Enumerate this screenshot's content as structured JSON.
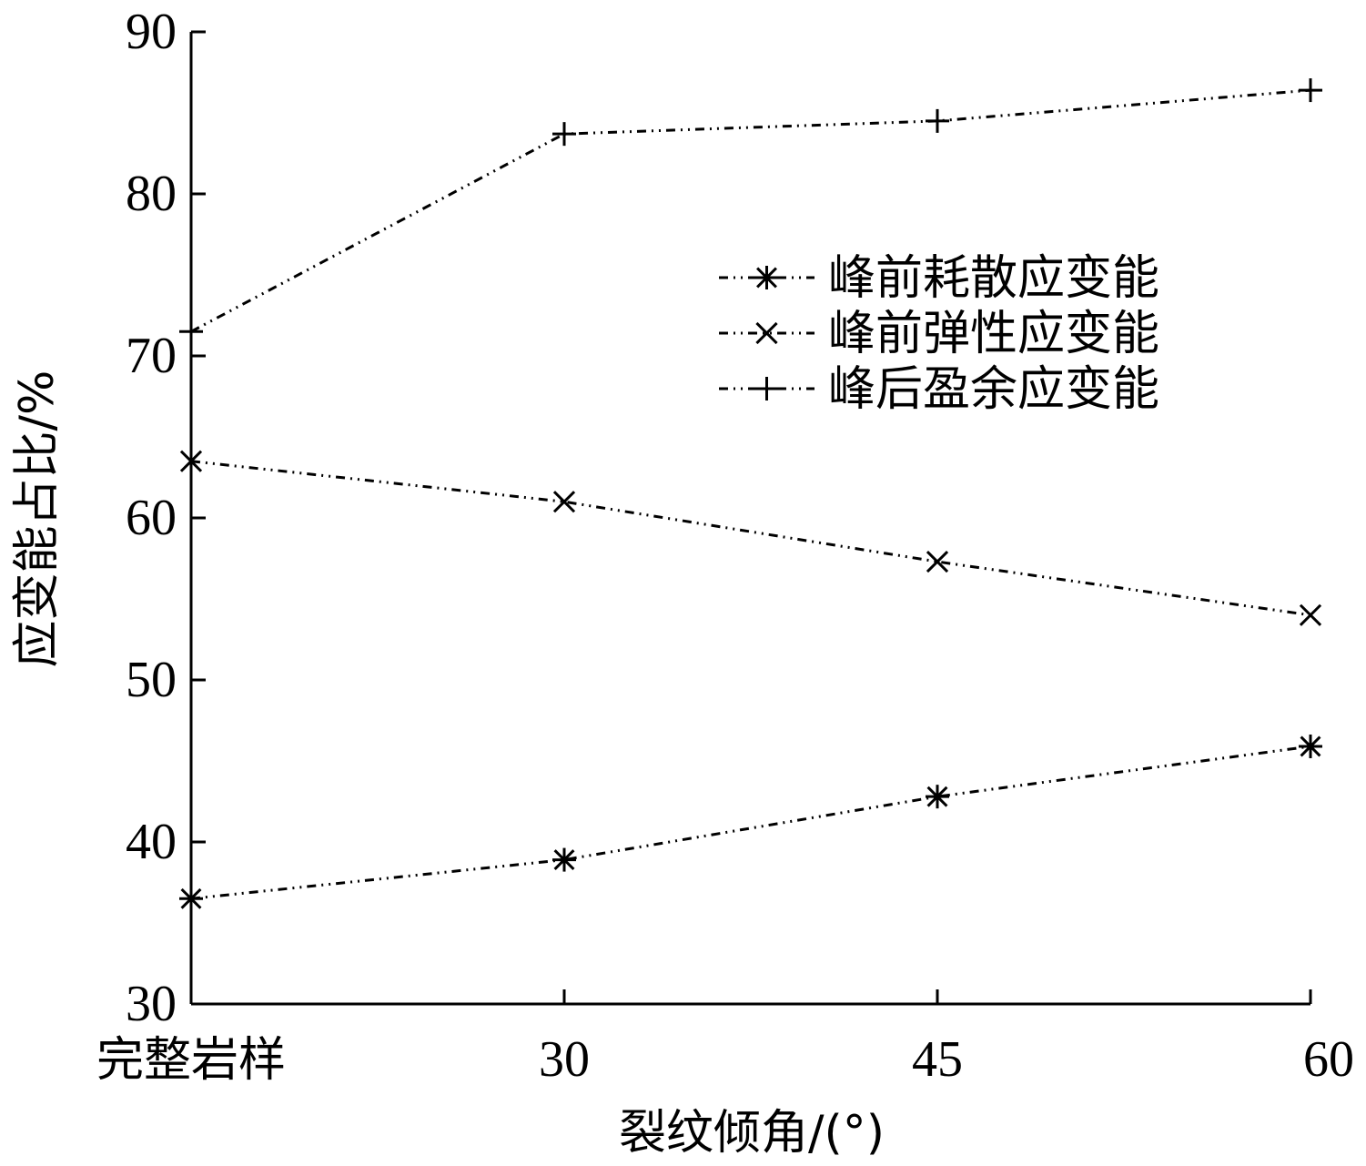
{
  "chart_data": {
    "type": "line",
    "title": "",
    "xlabel": "裂纹倾角/(°)",
    "ylabel": "应变能占比/%",
    "categories": [
      "完整岩样",
      "30",
      "45",
      "60"
    ],
    "ylim": [
      30,
      90
    ],
    "yticks": [
      30,
      40,
      50,
      60,
      70,
      80,
      90
    ],
    "grid": false,
    "legend_position": "center-right",
    "series": [
      {
        "name": "峰前耗散应变能",
        "marker": "asterisk-icon",
        "values": [
          36.5,
          38.9,
          42.8,
          45.9
        ]
      },
      {
        "name": "峰前弹性应变能",
        "marker": "x-icon",
        "values": [
          63.5,
          61.0,
          57.3,
          54.0
        ]
      },
      {
        "name": "峰后盈余应变能",
        "marker": "plus-icon",
        "values": [
          71.5,
          83.7,
          84.5,
          86.4
        ]
      }
    ]
  }
}
